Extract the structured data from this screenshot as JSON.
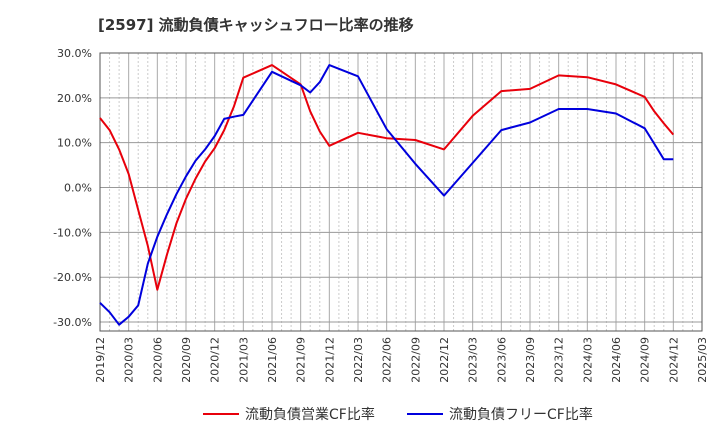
{
  "chart_data": {
    "type": "line",
    "title": "[2597]  流動負債キャッシュフロー比率の推移",
    "xlabel": "",
    "ylabel": "",
    "ylim": [
      -32,
      30
    ],
    "yticks": [
      "30.0%",
      "20.0%",
      "10.0%",
      "0.0%",
      "-10.0%",
      "-20.0%",
      "-30.0%"
    ],
    "ytick_values": [
      30,
      20,
      10,
      0,
      -10,
      -20,
      -30
    ],
    "xticks": [
      "2019/12",
      "2020/03",
      "2020/06",
      "2020/09",
      "2020/12",
      "2021/03",
      "2021/06",
      "2021/09",
      "2021/12",
      "2022/03",
      "2022/06",
      "2022/09",
      "2022/12",
      "2023/03",
      "2023/06",
      "2023/09",
      "2023/12",
      "2024/03",
      "2024/06",
      "2024/09",
      "2024/12",
      "2025/03"
    ],
    "grid": true,
    "legend_position": "bottom",
    "x": [
      "2019/12",
      "2020/01",
      "2020/02",
      "2020/03",
      "2020/04",
      "2020/05",
      "2020/06",
      "2020/07",
      "2020/08",
      "2020/09",
      "2020/10",
      "2020/11",
      "2020/12",
      "2021/01",
      "2021/02",
      "2021/03",
      "2021/06",
      "2021/09",
      "2021/10",
      "2021/11",
      "2021/12",
      "2022/03",
      "2022/06",
      "2022/09",
      "2022/12",
      "2023/03",
      "2023/06",
      "2023/09",
      "2023/12",
      "2024/03",
      "2024/06",
      "2024/09",
      "2024/10",
      "2024/11",
      "2024/12"
    ],
    "series": [
      {
        "name": "流動負債営業CF比率",
        "color": "#e8000b",
        "values": [
          15.5,
          12.8,
          8.5,
          3.0,
          -5.0,
          -13.0,
          -22.8,
          -15.0,
          -8.0,
          -2.5,
          2.0,
          5.8,
          8.8,
          12.8,
          18.0,
          24.5,
          27.3,
          23.0,
          17.0,
          12.5,
          9.3,
          12.2,
          11.0,
          10.6,
          8.5,
          16.0,
          21.5,
          22.0,
          25.0,
          24.6,
          23.0,
          20.2,
          17.0,
          14.3,
          11.8
        ]
      },
      {
        "name": "流動負債フリーCF比率",
        "color": "#0000dd",
        "values": [
          -25.7,
          -27.8,
          -30.6,
          -28.8,
          -26.3,
          -17.0,
          -11.0,
          -6.0,
          -1.5,
          2.5,
          6.0,
          8.5,
          11.5,
          15.3,
          15.8,
          16.2,
          25.8,
          22.8,
          21.2,
          23.5,
          27.3,
          24.8,
          13.0,
          5.3,
          -1.8,
          5.5,
          12.8,
          14.5,
          17.5,
          17.5,
          16.5,
          13.2,
          9.8,
          6.3,
          6.3
        ]
      }
    ]
  }
}
